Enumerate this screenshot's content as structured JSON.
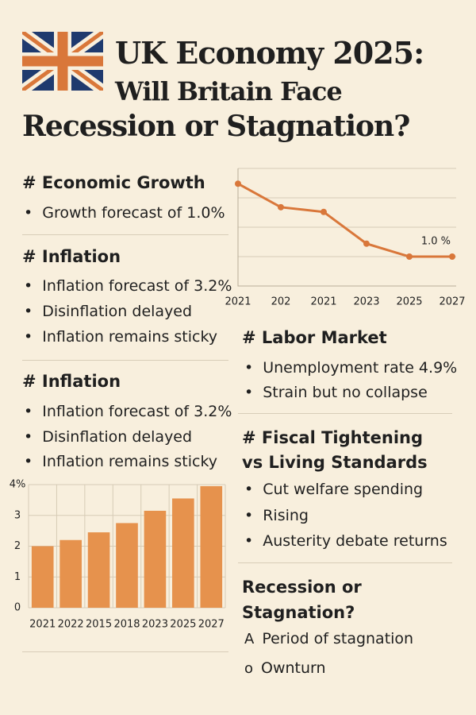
{
  "header": {
    "title_lines": [
      "UK Economy 2025:",
      "Will Britain Face",
      "Recession or Stagnation?"
    ]
  },
  "sections": [
    {
      "heading": "# Economic Growth",
      "bullets": [
        "Growth forecast of 1.0%"
      ]
    },
    {
      "heading": "# Inflation",
      "bullets": [
        "Inflation forecast of 3.2%",
        "Disinflation delayed",
        "Inflation remains sticky"
      ]
    },
    {
      "heading": "# Inflation",
      "bullets": [
        "Inflation forecast of 3.2%",
        "Disinflation delayed",
        "Inflation remains sticky"
      ]
    },
    {
      "heading": "# Labor Market",
      "bullets": [
        "Unemployment rate 4.9%",
        "Strain but no collapse"
      ]
    },
    {
      "heading": "# Fiscal Tightening vs Living Standards",
      "bullets": [
        "Cut welfare spending",
        "Rising",
        "Austerity debate returns"
      ]
    },
    {
      "heading": "Recession or Stagnation?",
      "markers": [
        "A",
        "o"
      ],
      "items": [
        "Period of stagnation",
        "Ownturn"
      ]
    }
  ],
  "chart_data": [
    {
      "type": "line",
      "categories": [
        "2021",
        "202",
        "2021",
        "2023",
        "2025",
        "2027"
      ],
      "values": [
        2.24,
        1.84,
        1.76,
        1.22,
        1.0,
        1.0
      ],
      "value_labels": [
        null,
        null,
        null,
        null,
        null,
        "1.0 %"
      ],
      "color": "#d9773a",
      "ylim": [
        0.5,
        2.5
      ],
      "grid": true
    },
    {
      "type": "bar",
      "categories": [
        "2021",
        "2022",
        "2015",
        "2018",
        "2023",
        "2025",
        "2027"
      ],
      "values": [
        2.0,
        2.2,
        2.45,
        2.75,
        3.15,
        3.55,
        3.95
      ],
      "color": "#e6924d",
      "ylim": [
        0,
        4
      ],
      "yticks": [
        0,
        1,
        2,
        3,
        {
          "value": 4,
          "label": "4%"
        }
      ],
      "grid": true
    }
  ]
}
